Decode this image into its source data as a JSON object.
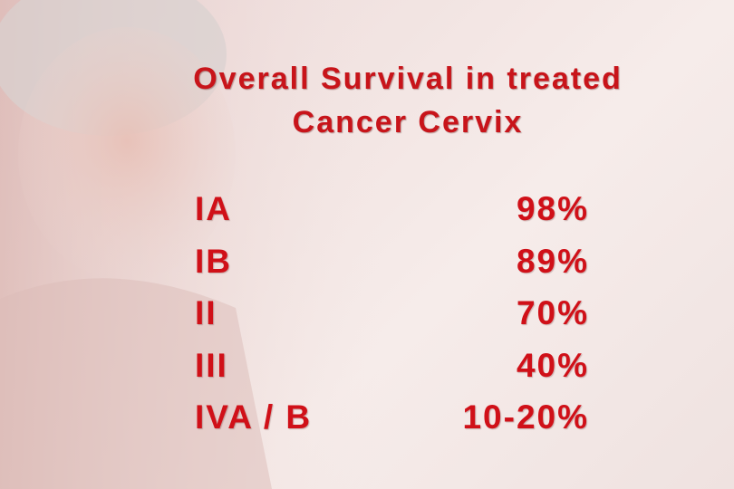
{
  "title": {
    "lines": [
      "Overall Survival in treated",
      "Cancer Cervix"
    ]
  },
  "table": {
    "rows": [
      [
        "IA",
        "98%"
      ],
      [
        "IB",
        "89%"
      ],
      [
        "II",
        "70%"
      ],
      [
        "III",
        "40%"
      ],
      [
        "IVA / B",
        "10-20%"
      ]
    ]
  }
}
